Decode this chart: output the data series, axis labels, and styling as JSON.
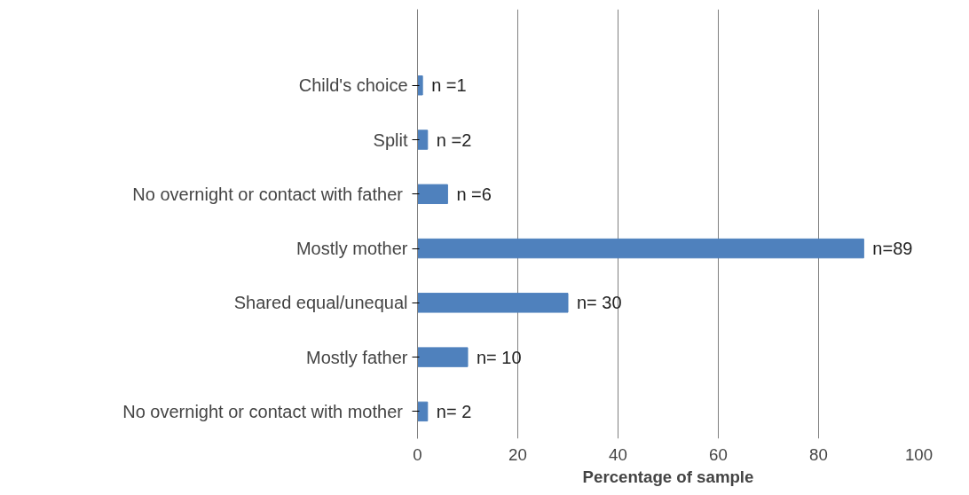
{
  "chart_data": {
    "type": "bar",
    "orientation": "horizontal",
    "xlabel": "Percentage of sample",
    "categories": [
      "Child's choice",
      "Split",
      "No overnight  or contact with father",
      "Mostly mother",
      "Shared equal/unequal",
      "Mostly father",
      "No overnight  or contact with mother"
    ],
    "values": [
      1,
      2,
      6,
      89,
      30,
      10,
      2
    ],
    "value_labels": [
      "n =1",
      "n =2",
      "n =6",
      "n=89",
      "n= 30",
      "n= 10",
      "n= 2"
    ],
    "color": "#4f81bd",
    "xlim": [
      0,
      100
    ],
    "xticks": [
      0,
      20,
      40,
      60,
      80,
      100
    ],
    "grid": "x"
  }
}
